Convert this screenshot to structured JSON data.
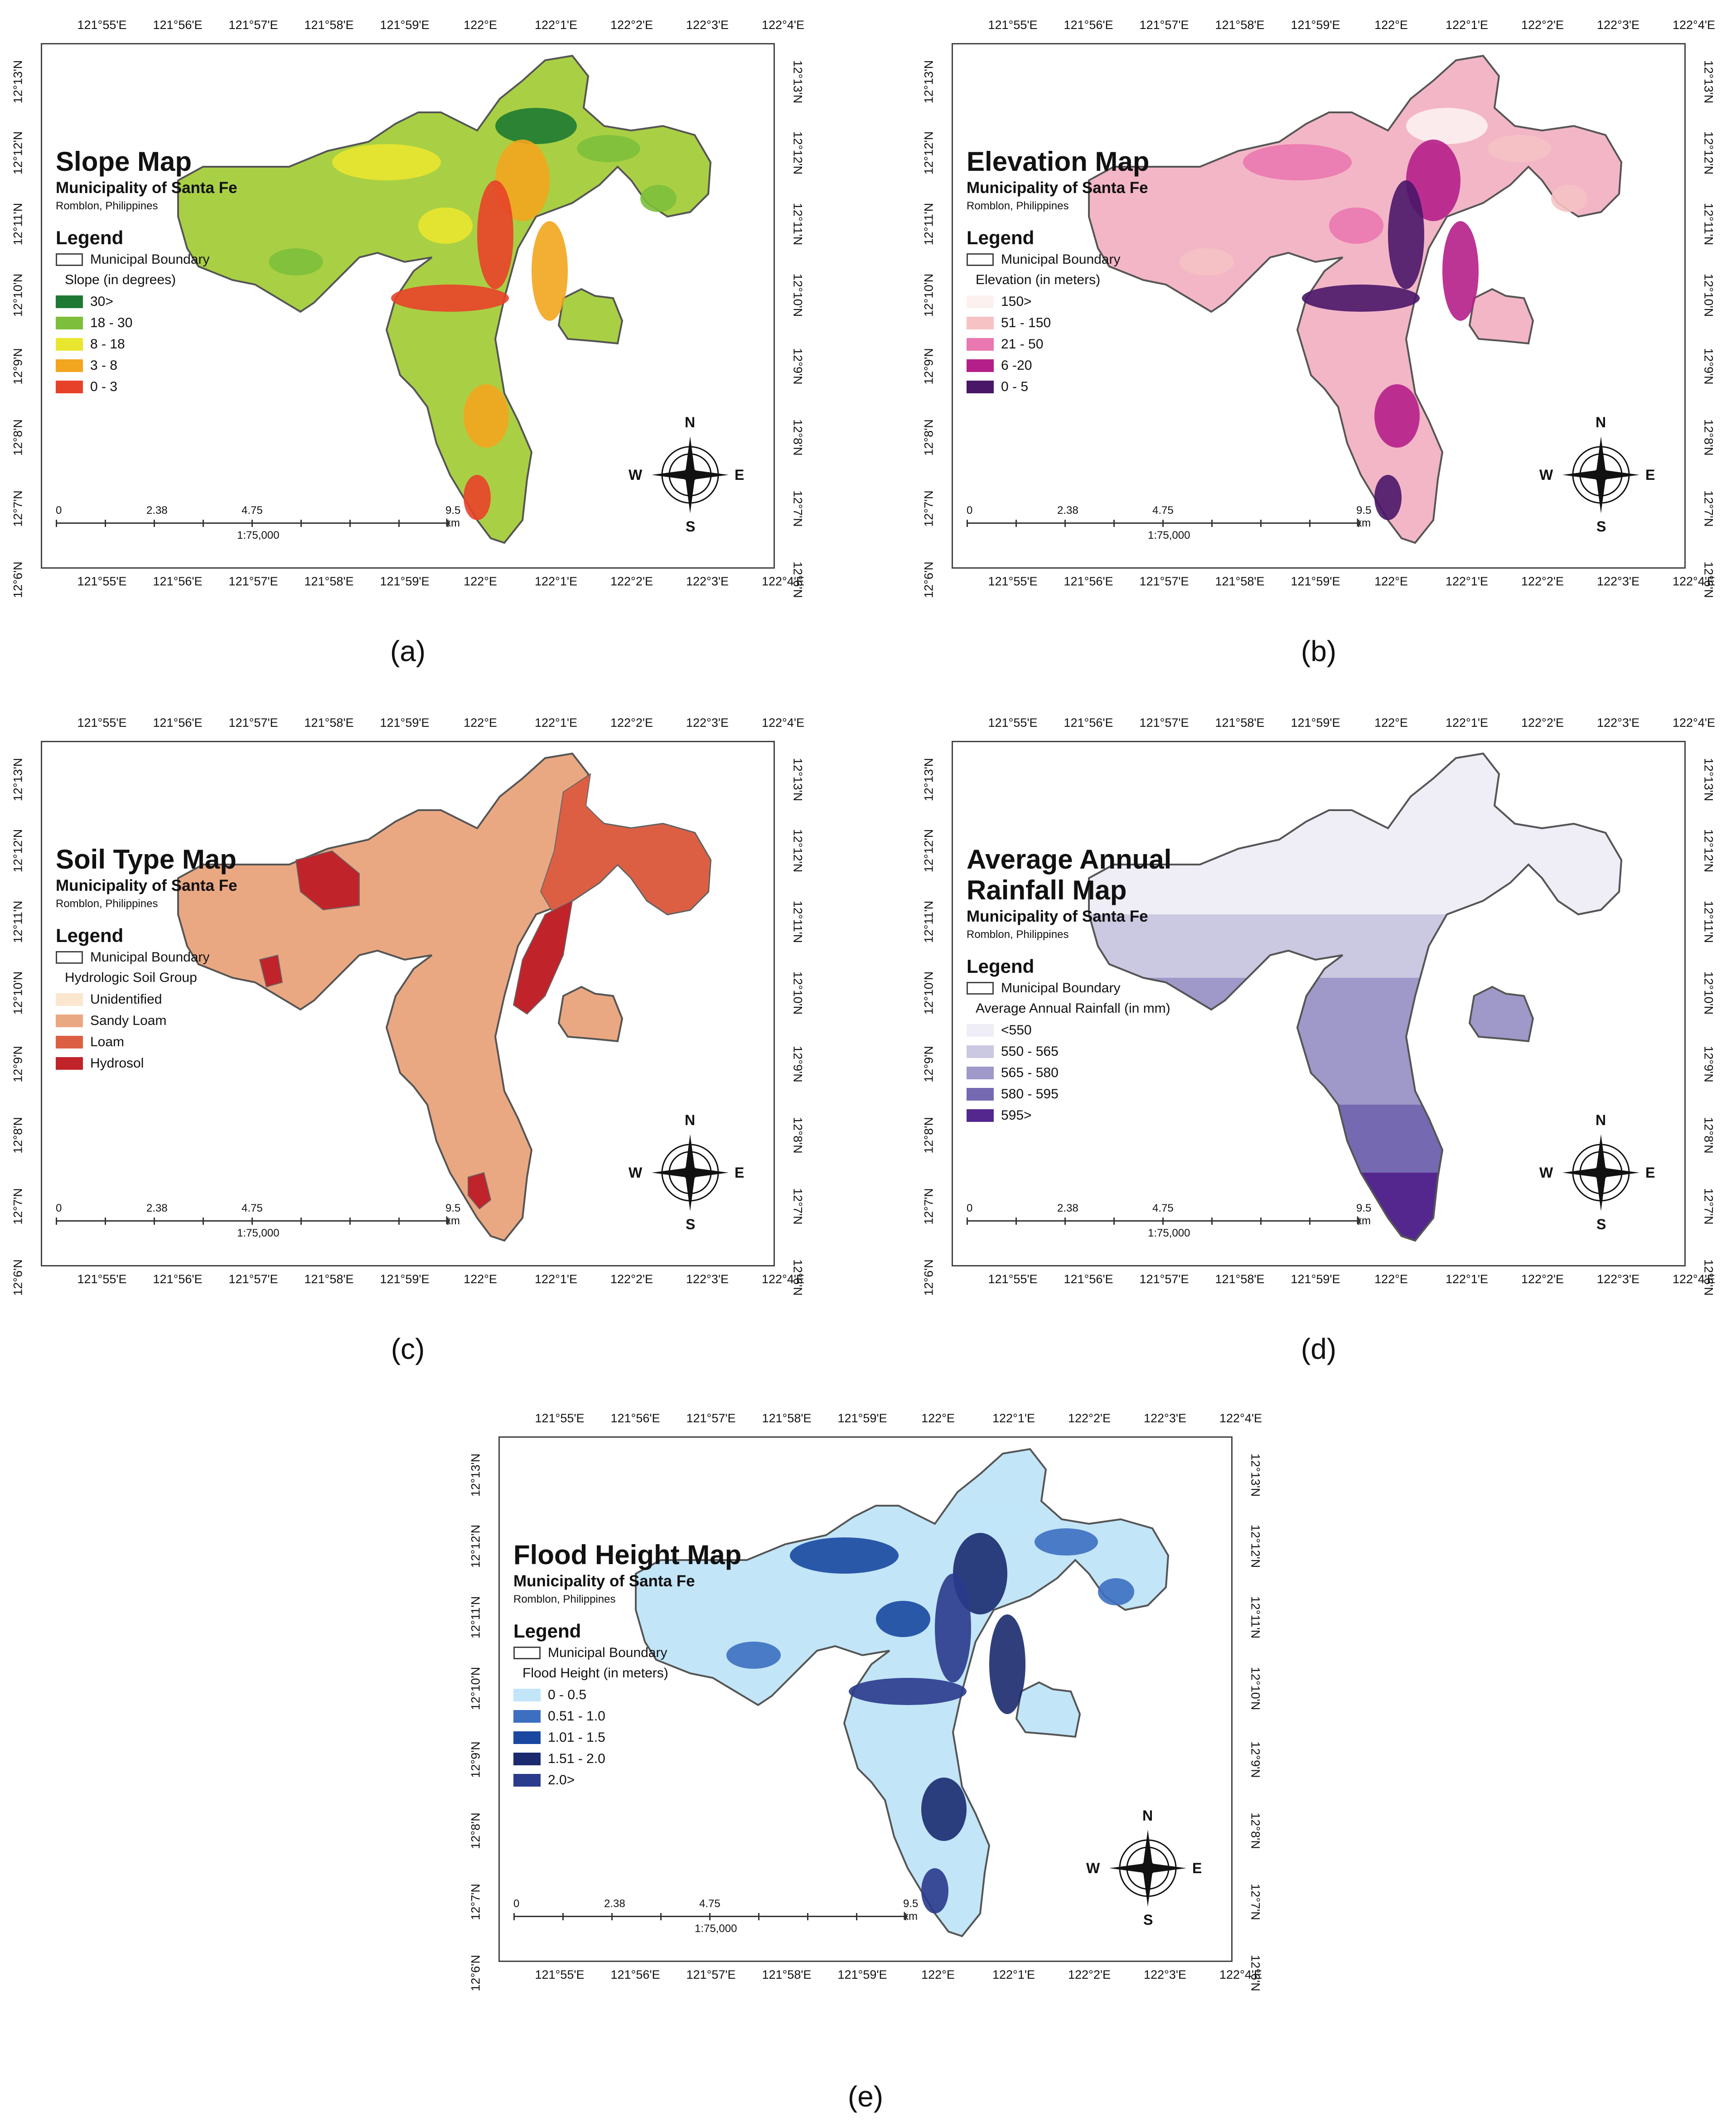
{
  "panels": [
    {
      "id": "a",
      "title_lines": [
        "Slope Map"
      ],
      "subtitle": "Municipality of Santa Fe",
      "place": "Romblon, Philippines",
      "legend_heading": "Legend",
      "boundary_label": "Municipal Boundary",
      "legend_caption": "Slope (in degrees)",
      "legend_items": [
        {
          "label": "30>",
          "color": "#1e7a32"
        },
        {
          "label": "18 - 30",
          "color": "#7dbf3c"
        },
        {
          "label": "8 - 18",
          "color": "#e9e630"
        },
        {
          "label": "3 - 8",
          "color": "#f2a51e"
        },
        {
          "label": "0 - 3",
          "color": "#e8412a"
        }
      ],
      "fill": "#a9d044",
      "caption": "(a)"
    },
    {
      "id": "b",
      "title_lines": [
        "Elevation Map"
      ],
      "subtitle": "Municipality of Santa Fe",
      "place": "Romblon, Philippines",
      "legend_heading": "Legend",
      "boundary_label": "Municipal Boundary",
      "legend_caption": "Elevation (in meters)",
      "legend_items": [
        {
          "label": "150>",
          "color": "#fdf1ef"
        },
        {
          "label": "51 - 150",
          "color": "#f6c2c4"
        },
        {
          "label": "21 - 50",
          "color": "#ea78b0"
        },
        {
          "label": "6 -20",
          "color": "#b51f8a"
        },
        {
          "label": "0 - 5",
          "color": "#4a1668"
        }
      ],
      "fill": "#f3b6c6",
      "caption": "(b)"
    },
    {
      "id": "c",
      "title_lines": [
        "Soil Type Map"
      ],
      "subtitle": "Municipality of Santa Fe",
      "place": "Romblon, Philippines",
      "legend_heading": "Legend",
      "boundary_label": "Municipal Boundary",
      "legend_caption": "Hydrologic Soil Group",
      "legend_items": [
        {
          "label": "Unidentified",
          "color": "#fbe6cf"
        },
        {
          "label": "Sandy Loam",
          "color": "#eaa882"
        },
        {
          "label": "Loam",
          "color": "#dd5f43"
        },
        {
          "label": "Hydrosol",
          "color": "#c1232a"
        }
      ],
      "fill": "#eaa882",
      "caption": "(c)"
    },
    {
      "id": "d",
      "title_lines": [
        "Average Annual",
        "Rainfall Map"
      ],
      "subtitle": "Municipality of Santa Fe",
      "place": "Romblon, Philippines",
      "legend_heading": "Legend",
      "boundary_label": "Municipal Boundary",
      "legend_caption": "Average Annual Rainfall (in mm)",
      "legend_items": [
        {
          "label": "<550",
          "color": "#efedf6"
        },
        {
          "label": "550 - 565",
          "color": "#cbc8e2"
        },
        {
          "label": "565 - 580",
          "color": "#9e99c9"
        },
        {
          "label": "580 - 595",
          "color": "#7569b2"
        },
        {
          "label": "595>",
          "color": "#54278f"
        }
      ],
      "fill": "#9e99c9",
      "caption": "(d)"
    },
    {
      "id": "e",
      "title_lines": [
        "Flood Height Map"
      ],
      "subtitle": "Municipality of Santa Fe",
      "place": "Romblon, Philippines",
      "legend_heading": "Legend",
      "boundary_label": "Municipal Boundary",
      "legend_caption": "Flood Height (in meters)",
      "legend_items": [
        {
          "label": "0 - 0.5",
          "color": "#c2e5f8"
        },
        {
          "label": "0.51 - 1.0",
          "color": "#3d6fc0"
        },
        {
          "label": "1.01 - 1.5",
          "color": "#1a48a0"
        },
        {
          "label": "1.51 - 2.0",
          "color": "#1a2a6e"
        },
        {
          "label": "2.0>",
          "color": "#2a3a8c"
        }
      ],
      "fill": "#c2e5f8",
      "caption": "(e)"
    }
  ],
  "lon_ticks": [
    "121°55'E",
    "121°56'E",
    "121°57'E",
    "121°58'E",
    "121°59'E",
    "122°E",
    "122°1'E",
    "122°2'E",
    "122°3'E",
    "122°4'E"
  ],
  "lat_ticks": [
    "12°13'N",
    "12°12'N",
    "12°11'N",
    "12°10'N",
    "12°9'N",
    "12°8'N",
    "12°7'N",
    "12°6'N"
  ],
  "scale_labels": [
    "0",
    "2.38",
    "4.75",
    "9.5 km"
  ],
  "scale_ratio": "1:75,000",
  "compass": {
    "n": "N",
    "s": "S",
    "e": "E",
    "w": "W"
  }
}
